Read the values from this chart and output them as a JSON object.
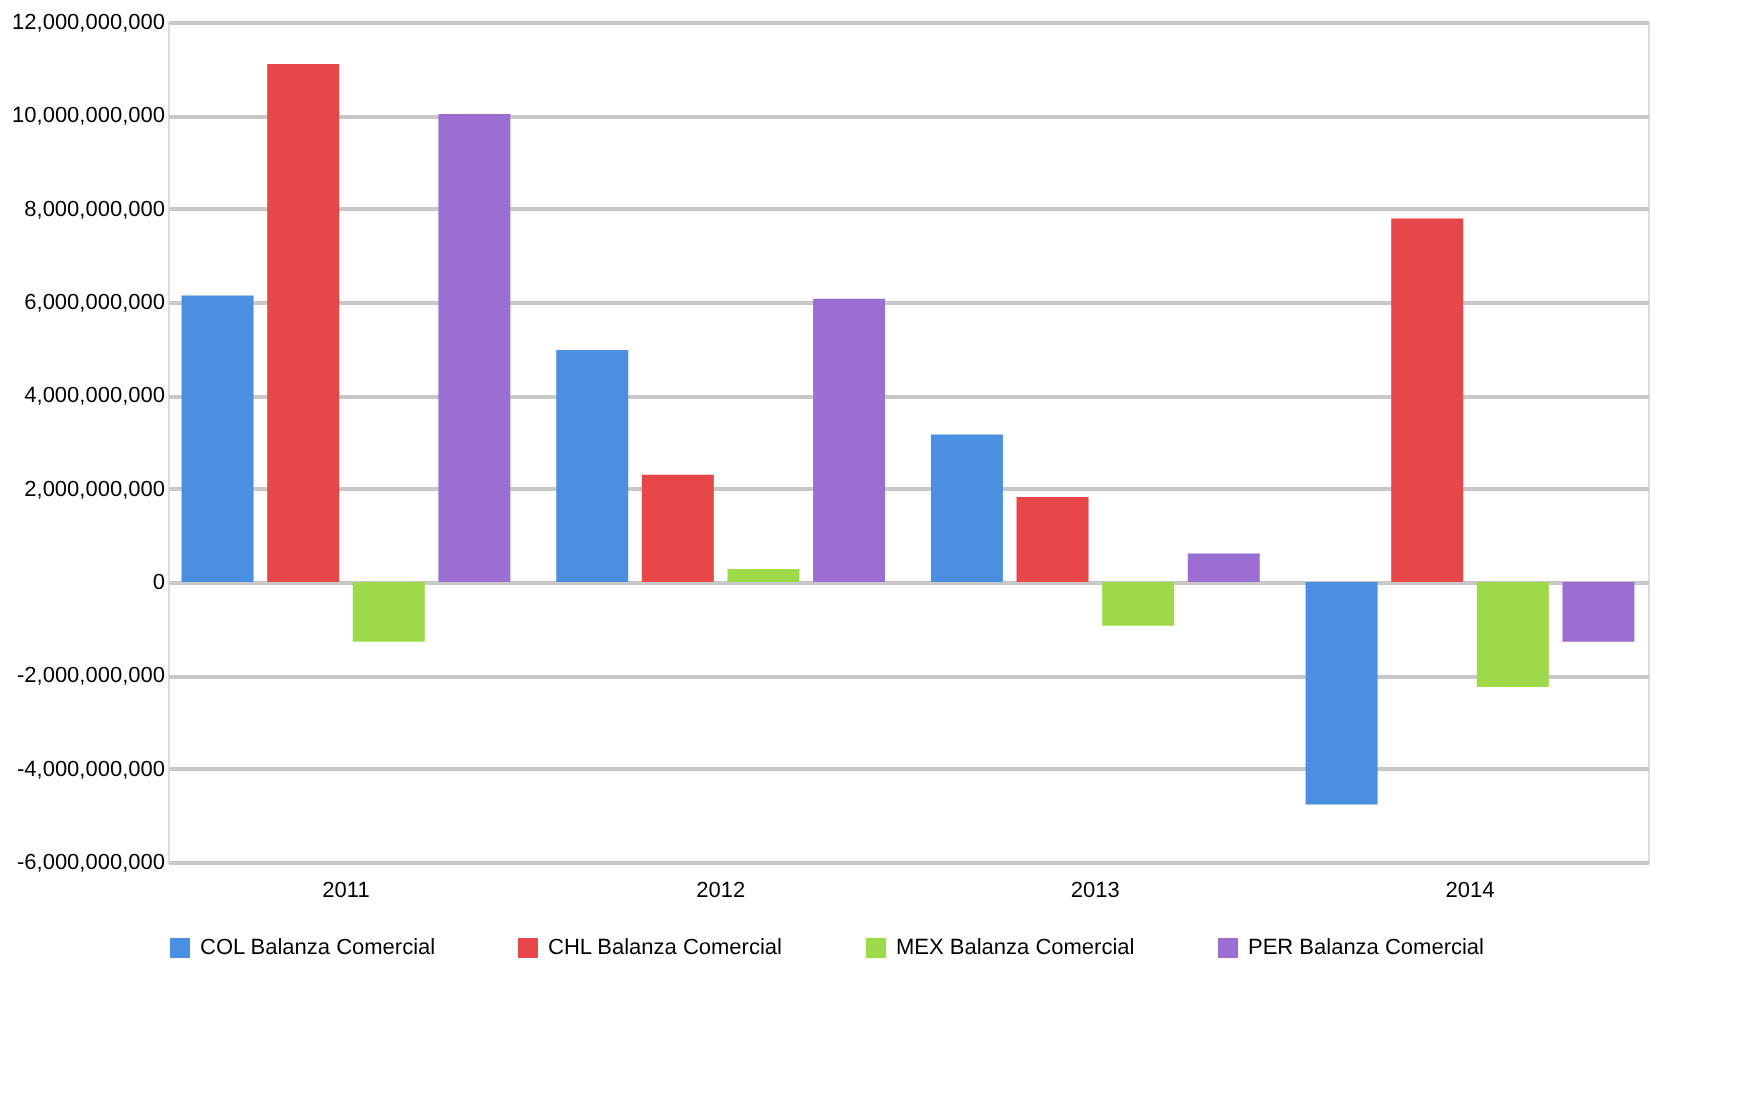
{
  "chart_data": {
    "type": "bar",
    "categories": [
      "2011",
      "2012",
      "2013",
      "2014"
    ],
    "series": [
      {
        "name": "COL Balanza Comercial",
        "color": "#4a8fe0",
        "values": [
          6140000000,
          4970000000,
          3160000000,
          -4770000000
        ]
      },
      {
        "name": "CHL Balanza Comercial",
        "color": "#e8474a",
        "values": [
          11100000000,
          2300000000,
          1820000000,
          7790000000
        ]
      },
      {
        "name": "MEX Balanza Comercial",
        "color": "#9ed94a",
        "values": [
          -1280000000,
          280000000,
          -940000000,
          -2250000000
        ]
      },
      {
        "name": "PER Balanza Comercial",
        "color": "#9b6fd1",
        "values": [
          10030000000,
          6070000000,
          610000000,
          -1280000000
        ]
      }
    ],
    "ylim": [
      -6000000000,
      12000000000
    ],
    "yticks": [
      {
        "value": -6000000000,
        "label": "-6,000,000,000"
      },
      {
        "value": -4000000000,
        "label": "-4,000,000,000"
      },
      {
        "value": -2000000000,
        "label": "-2,000,000,000"
      },
      0,
      {
        "value": 2000000000,
        "label": "2,000,000,000"
      },
      {
        "value": 4000000000,
        "label": "4,000,000,000"
      },
      {
        "value": 6000000000,
        "label": "6,000,000,000"
      },
      {
        "value": 8000000000,
        "label": "8,000,000,000"
      },
      {
        "value": 10000000000,
        "label": "10,000,000,000"
      },
      {
        "value": 12000000000,
        "label": "12,000,000,000"
      }
    ],
    "grid": "y",
    "legend": "bottom"
  }
}
